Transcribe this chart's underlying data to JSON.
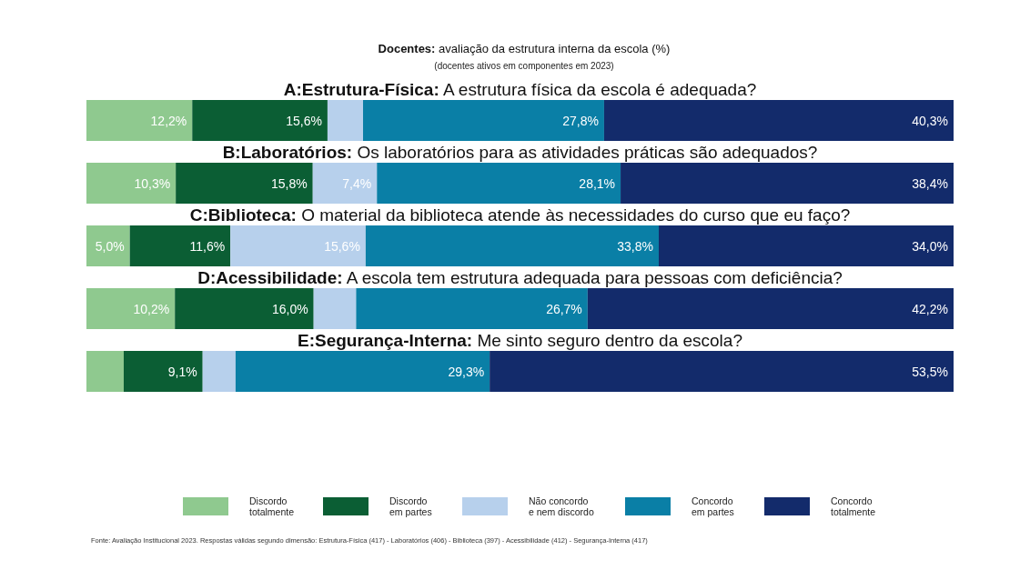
{
  "chart_data": {
    "type": "bar",
    "orientation": "horizontal",
    "stacked": true,
    "title": "Docentes: avaliação da estrutura interna da escola (%)",
    "subtitle": "(docentes ativos em componentes em 2023)",
    "categories": [
      "A:Estrutura-Física: A estrutura física da escola é adequada?",
      "B:Laboratórios: Os laboratórios para as atividades práticas são adequados?",
      "C:Biblioteca: O material da biblioteca atende às necessidades do curso que eu faço?",
      "D:Acessibilidade: A escola tem estrutura adequada para pessoas com deficiência?",
      "E:Segurança-Interna: Me sinto seguro dentro da escola?"
    ],
    "xlim": [
      0,
      100
    ],
    "series": [
      {
        "name": "Discordo totalmente",
        "color": "#8fc98f",
        "values": [
          12.2,
          10.3,
          5.0,
          10.2,
          4.3
        ],
        "value_labels": [
          "12,2%",
          "10,3%",
          "5,0%",
          "10,2%",
          null
        ]
      },
      {
        "name": "Discordo em partes",
        "color": "#0b5e34",
        "values": [
          15.6,
          15.8,
          11.6,
          16.0,
          9.1
        ],
        "value_labels": [
          "15,6%",
          "15,8%",
          "11,6%",
          "16,0%",
          "9,1%"
        ]
      },
      {
        "name": "Não concordo e nem discordo",
        "color": "#b7d0ec",
        "values": [
          4.1,
          7.4,
          15.6,
          4.9,
          3.8
        ],
        "value_labels": [
          null,
          "7,4%",
          "15,6%",
          null,
          null
        ]
      },
      {
        "name": "Concordo em partes",
        "color": "#0a7fa6",
        "values": [
          27.8,
          28.1,
          33.8,
          26.7,
          29.3
        ],
        "value_labels": [
          "27,8%",
          "28,1%",
          "33,8%",
          "26,7%",
          "29,3%"
        ]
      },
      {
        "name": "Concordo totalmente",
        "color": "#132b6b",
        "values": [
          40.3,
          38.4,
          34.0,
          42.2,
          53.5
        ],
        "value_labels": [
          "40,3%",
          "38,4%",
          "34,0%",
          "42,2%",
          "53,5%"
        ]
      }
    ],
    "legend": "bottom",
    "annotations": [
      "Fonte: Avaliação Institucional 2023. Respostas válidas segundo dimensão: Estrutura-Física (417) - Laboratórios (406) - Biblioteca (397) - Acessibilidade (412) - Segurança-Interna (417)"
    ]
  }
}
